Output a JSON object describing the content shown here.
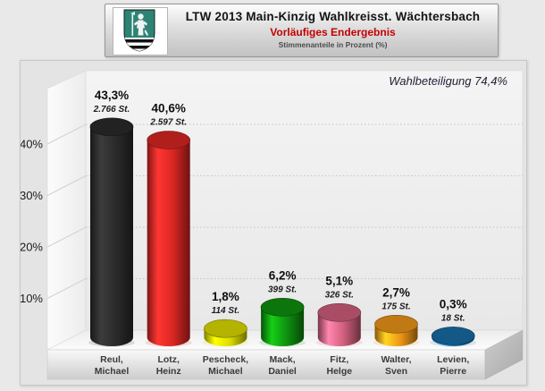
{
  "header": {
    "title": "LTW 2013 Main-Kinzig Wahlkreisst. Wächtersbach",
    "subtitle": "Vorläufiges Endergebnis",
    "caption": "Stimmenanteile in Prozent (%)",
    "emblem": "waechtersbach-coat-of-arms"
  },
  "turnout_label": "Wahlbeteiligung 74,4%",
  "chart_data": {
    "type": "bar",
    "style": "3d-cylinder",
    "title": "LTW 2013 Main-Kinzig Wahlkreisst. Wächtersbach",
    "subtitle": "Vorläufiges Endergebnis",
    "ylabel": "Stimmenanteile in Prozent (%)",
    "annotation": "Wahlbeteiligung 74,4%",
    "categories": [
      "Reul, Michael",
      "Lotz, Heinz",
      "Pescheck, Michael",
      "Mack, Daniel",
      "Fitz, Helge",
      "Walter, Sven",
      "Levien, Pierre"
    ],
    "values": [
      43.3,
      40.6,
      1.8,
      6.2,
      5.1,
      2.7,
      0.3
    ],
    "value_labels": [
      "43,3%",
      "40,6%",
      "1,8%",
      "6,2%",
      "5,1%",
      "2,7%",
      "0,3%"
    ],
    "votes_labels": [
      "2.766 St.",
      "2.597 St.",
      "114 St.",
      "399 St.",
      "326 St.",
      "175 St.",
      "18 St."
    ],
    "bar_colors": [
      "#282828",
      "#d02421",
      "#d2d200",
      "#0e8a0e",
      "#c75a76",
      "#e28e16",
      "#17689f"
    ],
    "ylim": [
      0,
      45
    ],
    "yticks": [
      10,
      20,
      30,
      40
    ],
    "ytick_labels": [
      "10%",
      "20%",
      "30%",
      "40%"
    ],
    "grid": "dotted-horizontal",
    "legend": "none"
  }
}
